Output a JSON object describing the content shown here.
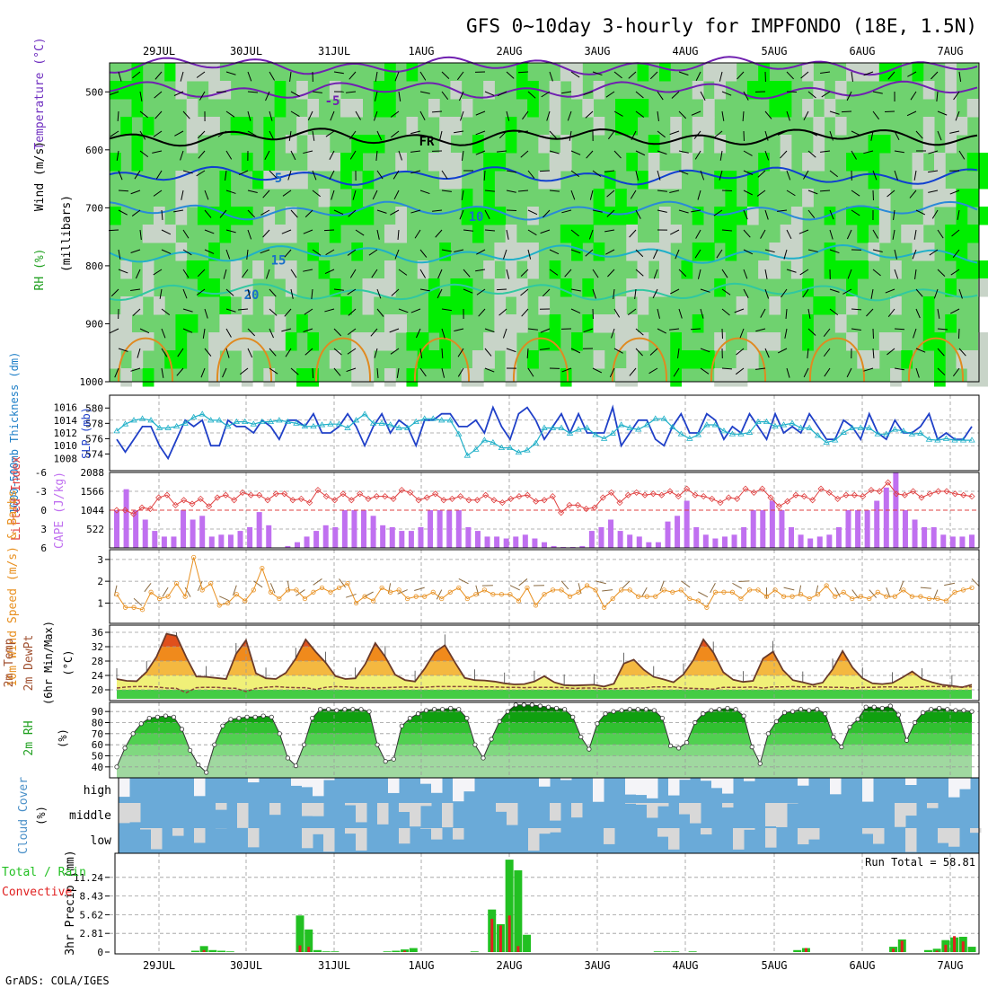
{
  "title": "GFS 0~10day 3-hourly for IMPFONDO (18E, 1.5N)",
  "credit": "GrADS: COLA/IGES",
  "colors": {
    "rh_light": "#c8d4c8",
    "rh_mid": "#6fd26f",
    "rh_bright": "#00ee00",
    "wind_barb": "#000000",
    "slp": "#2040c8",
    "thickness": "#20b0c8",
    "lifted_index": "#e04040",
    "cape": "#c070f0",
    "wind10m": "#e89020",
    "cloud": "#6aaad8",
    "cloud_clear": "#f4f4f8",
    "cloud_gray": "#d8d8d8",
    "precip_total": "#22c022",
    "precip_conv": "#e02020"
  },
  "chart_data": [
    {
      "type": "heatmap",
      "panel": "upper_air",
      "ylabel_parts": [
        "RH (%)",
        "Temperature (°C)",
        "Wind (m/s)"
      ],
      "y_unit_label": "(millibars)",
      "x_dates": [
        "29JUL",
        "30JUL",
        "31JUL",
        "1AUG",
        "2AUG",
        "3AUG",
        "4AUG",
        "5AUG",
        "6AUG",
        "7AUG"
      ],
      "y_ticks": [
        500,
        600,
        700,
        800,
        900,
        1000
      ],
      "ylim": [
        1000,
        450
      ],
      "isotherm_labels": [
        {
          "label": "-5",
          "level": 515
        },
        {
          "label": "FR",
          "level": 585
        },
        {
          "label": "5",
          "level": 648
        },
        {
          "label": "10",
          "level": 715
        },
        {
          "label": "15",
          "level": 790
        },
        {
          "label": "20",
          "level": 850
        }
      ]
    },
    {
      "type": "line",
      "panel": "slp_thickness",
      "ylabel": "1000-500mb Thickness (dm)",
      "ylabel2": "SLP (mb)",
      "y_ticks_left": [
        574,
        576,
        578,
        580
      ],
      "y_ticks_right": [
        1008,
        1010,
        1012,
        1014,
        1016
      ],
      "series": [
        {
          "name": "SLP",
          "axis": "right",
          "values": [
            1011,
            1009,
            1011,
            1013,
            1013,
            1010,
            1008,
            1011,
            1014,
            1013,
            1014,
            1010,
            1010,
            1014,
            1013,
            1013,
            1012,
            1014,
            1013,
            1011,
            1014,
            1014,
            1013,
            1015,
            1012,
            1012,
            1013,
            1015,
            1013,
            1010,
            1013,
            1015,
            1012,
            1014,
            1013,
            1010,
            1014,
            1014,
            1015,
            1015,
            1013,
            1013,
            1014,
            1012,
            1016,
            1013,
            1011,
            1015,
            1016,
            1014,
            1011,
            1013,
            1015,
            1012,
            1015,
            1012,
            1012,
            1012,
            1016,
            1010,
            1012,
            1014,
            1014,
            1011,
            1010,
            1013,
            1015,
            1012,
            1012,
            1015,
            1014,
            1011,
            1013,
            1012,
            1015,
            1013,
            1011,
            1015,
            1012,
            1013,
            1012,
            1015,
            1013,
            1011,
            1011,
            1014,
            1013,
            1011,
            1015,
            1012,
            1011,
            1014,
            1012,
            1012,
            1013,
            1015,
            1011,
            1012,
            1011,
            1011,
            1013
          ]
        },
        {
          "name": "1000-500mb Thickness",
          "axis": "left",
          "values": [
            577,
            577.9,
            578.4,
            578.6,
            578.4,
            577.4,
            577.4,
            577.6,
            578,
            578.8,
            579.2,
            578.4,
            578.4,
            577.6,
            578.2,
            578.2,
            577.9,
            578.2,
            578.2,
            578.4,
            578.2,
            578,
            577.6,
            577.6,
            577.8,
            577.9,
            577.9,
            577.4,
            578.4,
            579.2,
            578,
            578,
            577.8,
            577.4,
            577.4,
            578.2,
            578.6,
            578.6,
            578.4,
            578.4,
            576.6,
            573.8,
            574.6,
            575.8,
            575.5,
            574.8,
            574.8,
            574.2,
            574.5,
            575.4,
            577.4,
            577.4,
            577.4,
            576.7,
            577.2,
            577.4,
            576.5,
            576,
            576.7,
            577.8,
            577.4,
            577.2,
            577.8,
            578.6,
            578.6,
            577.5,
            576.6,
            576,
            576.5,
            577.8,
            577.8,
            577,
            576.6,
            576.6,
            576.8,
            578.2,
            578.2,
            577.6,
            577.8,
            578,
            577.4,
            577.4,
            576.4,
            575.5,
            575.8,
            576.8,
            577.4,
            577.4,
            577.4,
            576.6,
            576.6,
            577.2,
            577,
            576.6,
            576.7,
            575.9,
            575.8,
            576,
            575.8,
            575.8,
            575.8
          ]
        }
      ]
    },
    {
      "type": "bar",
      "panel": "cape_li",
      "ylabel": "Lifted Index",
      "ylabel2": "CAPE (J/kg)",
      "y_ticks_left": [
        -6,
        -3,
        0,
        3,
        6
      ],
      "y_ticks_right": [
        522,
        1044,
        1566,
        2088
      ],
      "series": [
        {
          "name": "CAPE",
          "values": [
            1044,
            1624,
            1044,
            783,
            470,
            313,
            313,
            1044,
            783,
            887,
            313,
            365,
            365,
            470,
            574,
            992,
            626,
            0,
            52,
            157,
            313,
            470,
            626,
            574,
            1044,
            1044,
            1044,
            887,
            626,
            574,
            470,
            470,
            574,
            1044,
            1044,
            1044,
            1044,
            574,
            470,
            313,
            313,
            261,
            313,
            365,
            261,
            157,
            52,
            26,
            26,
            52,
            470,
            574,
            783,
            470,
            365,
            313,
            157,
            157,
            730,
            887,
            1305,
            574,
            365,
            261,
            313,
            365,
            574,
            1044,
            1044,
            1305,
            1044,
            574,
            365,
            261,
            313,
            365,
            574,
            1044,
            1044,
            1044,
            1305,
            1670,
            2088,
            1044,
            783,
            574,
            574,
            365,
            313,
            313,
            365
          ]
        },
        {
          "name": "Lifted Index",
          "values": [
            0,
            0,
            0.6,
            -0.4,
            -0.2,
            -2,
            -2.4,
            -0.8,
            -1.6,
            -1,
            -1.8,
            -0.6,
            -2,
            -2.4,
            -1.6,
            -2.8,
            -2.4,
            -2.4,
            -1.6,
            -2.6,
            -2.6,
            -1.6,
            -1.8,
            -1.2,
            -3.2,
            -2.2,
            -1.6,
            -2.6,
            -1.6,
            -2.6,
            -1.8,
            -2.2,
            -2.2,
            -1.8,
            -3.2,
            -2.8,
            -1.6,
            -2,
            -2.6,
            -1.6,
            -1.8,
            -2.2,
            -1.6,
            -1.6,
            -2.4,
            -1.6,
            -1.2,
            -1.8,
            -2.2,
            -2.4,
            -1.4,
            -1.6,
            -2.2,
            0.4,
            -0.8,
            -0.8,
            -0.2,
            -0.4,
            -2,
            -2.8,
            -1.2,
            -2.4,
            -2.8,
            -2.4,
            -2.6,
            -2.4,
            -3,
            -2.2,
            -3.4,
            -2.4,
            -2.2,
            -1.8,
            -1.2,
            -2,
            -1.8,
            -3.4,
            -2.8,
            -3.4,
            -2,
            -0.6,
            -1.4,
            -2.4,
            -2.2,
            -1.6,
            -3.4,
            -2.8,
            -1.8,
            -2.4,
            -2.4,
            -2.2,
            -3.2,
            -3,
            -4.4,
            -2.6,
            -2.4,
            -3,
            -2,
            -2.6,
            -3,
            -3,
            -2.6,
            -2.4,
            -2.2
          ]
        }
      ]
    },
    {
      "type": "line",
      "panel": "wind10m",
      "ylabel": "10m Wind Speed (m/s) & Barbs",
      "y_ticks": [
        1,
        2,
        3
      ],
      "values": [
        1.4,
        0.8,
        0.8,
        0.7,
        1.5,
        1.2,
        1.3,
        1.9,
        1.3,
        3.1,
        1.6,
        1.9,
        0.9,
        1.0,
        1.4,
        1.1,
        1.6,
        2.6,
        1.5,
        1.2,
        1.6,
        1.6,
        1.2,
        1.5,
        1.7,
        1.5,
        1.7,
        1.9,
        1.0,
        1.3,
        1.1,
        1.7,
        1.5,
        1.6,
        1.2,
        1.3,
        1.3,
        1.5,
        1.2,
        1.5,
        1.7,
        1.2,
        1.4,
        1.6,
        1.4,
        1.4,
        1.4,
        1.1,
        1.7,
        0.9,
        1.4,
        1.6,
        1.6,
        1.3,
        1.5,
        1.8,
        1.6,
        0.8,
        1.2,
        1.6,
        1.6,
        1.3,
        1.3,
        1.3,
        1.6,
        1.5,
        1.6,
        1.2,
        1.1,
        0.8,
        1.5,
        1.5,
        1.5,
        1.2,
        1.6,
        1.6,
        1.3,
        1.6,
        1.3,
        1.3,
        1.4,
        1.2,
        1.4,
        1.8,
        1.3,
        1.5,
        1.2,
        1.3,
        1.2,
        1.5,
        1.3,
        1.3,
        1.6,
        1.3,
        1.3,
        1.2,
        1.2,
        1.1,
        1.5,
        1.6,
        1.7
      ]
    },
    {
      "type": "area",
      "panel": "temp2m",
      "ylabel": "2m Temp 2m DewPt (6hr Min/Max) (°C)",
      "y_ticks": [
        20,
        24,
        28,
        32,
        36
      ],
      "series": [
        {
          "name": "2m Temp",
          "values": [
            23,
            22.5,
            22.4,
            25,
            29.2,
            35.6,
            35,
            29,
            23.7,
            23.6,
            23.3,
            23,
            30,
            33.8,
            24.6,
            23.2,
            23,
            24.7,
            28.7,
            34,
            30.6,
            27.6,
            23.8,
            23,
            23.2,
            27.2,
            33,
            29.2,
            24.2,
            22.7,
            22.3,
            26,
            30.5,
            32.4,
            27.7,
            23.3,
            22.7,
            22.6,
            22.3,
            21.8,
            21.5,
            21.6,
            22.3,
            23.8,
            22.1,
            21.3,
            21.2,
            21.3,
            21.4,
            20.9,
            21.7,
            27.3,
            28.4,
            25.6,
            23.6,
            22.9,
            22.1,
            24.3,
            28.3,
            34,
            30.4,
            24.9,
            22.8,
            22.2,
            22.5,
            28.7,
            30.6,
            25.5,
            22.7,
            22.1,
            21.4,
            22,
            25.7,
            30.8,
            26.2,
            23.2,
            21.8,
            21.6,
            21.9,
            23.4,
            25.1,
            23,
            22.1,
            21.4,
            21.1,
            20.7,
            21.4
          ]
        },
        {
          "name": "2m DewPt",
          "values": [
            20.5,
            20.8,
            20.9,
            20.9,
            20.8,
            20.5,
            20.4,
            19.2,
            20.6,
            20.7,
            20.7,
            20.5,
            20.4,
            19.5,
            20.4,
            20.7,
            20.9,
            20.7,
            20.6,
            20.6,
            20.1,
            20.7,
            20.9,
            20.8,
            20.6,
            20.6,
            20.6,
            20.6,
            20.7,
            20.8,
            20.7,
            20.7,
            20.9,
            20.9,
            20.9,
            20.9,
            20.9,
            20.8,
            20.8,
            20.7,
            20.7,
            20.6,
            20.7,
            20.7,
            20.7,
            20.6,
            20.4,
            20.5,
            20.5,
            20.3,
            20.3,
            20.4,
            20.5,
            20.5,
            20.8,
            20.8,
            20.8,
            20.5,
            20.4,
            20.3,
            20.2,
            20.7,
            20.7,
            20.7,
            20.8,
            20.5,
            20.8,
            20.8,
            20.9,
            20.8,
            20.9,
            20.8,
            20.7,
            20.7,
            20.5,
            20.7,
            20.7,
            20.8,
            20.8,
            20.7,
            20.7,
            20.9,
            20.9,
            20.9,
            20.8,
            20.8,
            20.8
          ]
        }
      ]
    },
    {
      "type": "area",
      "panel": "rh2m",
      "ylabel": "2m RH (%)",
      "y_ticks": [
        40,
        50,
        60,
        70,
        80,
        90
      ],
      "values": [
        40,
        57,
        70,
        79,
        84,
        85,
        86,
        85,
        74,
        55,
        42,
        35,
        60,
        77,
        83,
        84,
        85,
        85,
        86,
        85,
        70,
        48,
        41,
        60,
        84,
        92,
        92,
        91,
        92,
        92,
        92,
        90,
        60,
        45,
        47,
        77,
        84,
        88,
        91,
        92,
        92,
        93,
        92,
        84,
        60,
        48,
        65,
        81,
        90,
        96,
        96,
        96,
        95,
        94,
        93,
        92,
        85,
        67,
        56,
        79,
        88,
        90,
        91,
        92,
        92,
        92,
        91,
        84,
        59,
        57,
        62,
        80,
        88,
        91,
        92,
        93,
        92,
        86,
        58,
        43,
        70,
        81,
        89,
        90,
        92,
        91,
        92,
        88,
        67,
        58,
        76,
        83,
        94,
        94,
        93,
        95,
        87,
        64,
        80,
        89,
        92,
        93,
        92,
        91,
        91,
        90
      ]
    },
    {
      "type": "heatmap",
      "panel": "cloud_cover",
      "ylabel": "Cloud Cover (%)",
      "row_labels": [
        "high",
        "middle",
        "low"
      ]
    },
    {
      "type": "bar",
      "panel": "precip",
      "ylabel": "3hr Precip (mm)",
      "ylabel_left": "Total / Rain",
      "ylabel_left2": "Convective",
      "annotation": "Run Total = 58.81",
      "y_ticks": [
        0,
        2.81,
        5.62,
        8.43,
        11.24
      ],
      "ylim": [
        0,
        14.05
      ],
      "series": [
        {
          "name": "Total",
          "values": [
            0,
            0,
            0,
            0,
            0,
            0,
            0,
            0,
            0,
            0.2,
            0.9,
            0.3,
            0.2,
            0.1,
            0,
            0,
            0,
            0,
            0,
            0,
            0,
            5.5,
            3.4,
            0.3,
            0.1,
            0.1,
            0,
            0,
            0,
            0,
            0,
            0.1,
            0.2,
            0.4,
            0.6,
            0,
            0,
            0,
            0,
            0,
            0,
            0.1,
            0,
            6.4,
            4.2,
            13.9,
            12.3,
            2.6,
            0,
            0,
            0,
            0,
            0,
            0,
            0,
            0,
            0,
            0,
            0,
            0,
            0,
            0,
            0.1,
            0.1,
            0.1,
            0,
            0.1,
            0,
            0,
            0,
            0,
            0,
            0,
            0,
            0,
            0,
            0,
            0,
            0.3,
            0.6,
            0,
            0,
            0,
            0,
            0,
            0,
            0,
            0,
            0,
            0.8,
            1.9,
            0,
            0,
            0.3,
            0.5,
            1.8,
            2.2,
            2.3,
            0.8
          ]
        },
        {
          "name": "Convective",
          "values": [
            0,
            0,
            0,
            0,
            0,
            0,
            0,
            0,
            0,
            0,
            0.3,
            0,
            0,
            0,
            0,
            0,
            0,
            0,
            0,
            0,
            0,
            1.0,
            0.8,
            0,
            0,
            0,
            0,
            0,
            0,
            0,
            0,
            0,
            0,
            0.2,
            0,
            0,
            0,
            0,
            0,
            0,
            0,
            0,
            0,
            5.0,
            4.0,
            5.5,
            0.9,
            0,
            0,
            0,
            0,
            0,
            0,
            0,
            0,
            0,
            0,
            0,
            0,
            0,
            0,
            0,
            0,
            0,
            0,
            0,
            0,
            0,
            0,
            0,
            0,
            0,
            0,
            0,
            0,
            0,
            0,
            0,
            0,
            0.6,
            0,
            0,
            0,
            0,
            0,
            0,
            0,
            0,
            0,
            0.5,
            1.7,
            0,
            0,
            0,
            0.2,
            1.1,
            2.4,
            1.6,
            0
          ]
        }
      ]
    }
  ]
}
